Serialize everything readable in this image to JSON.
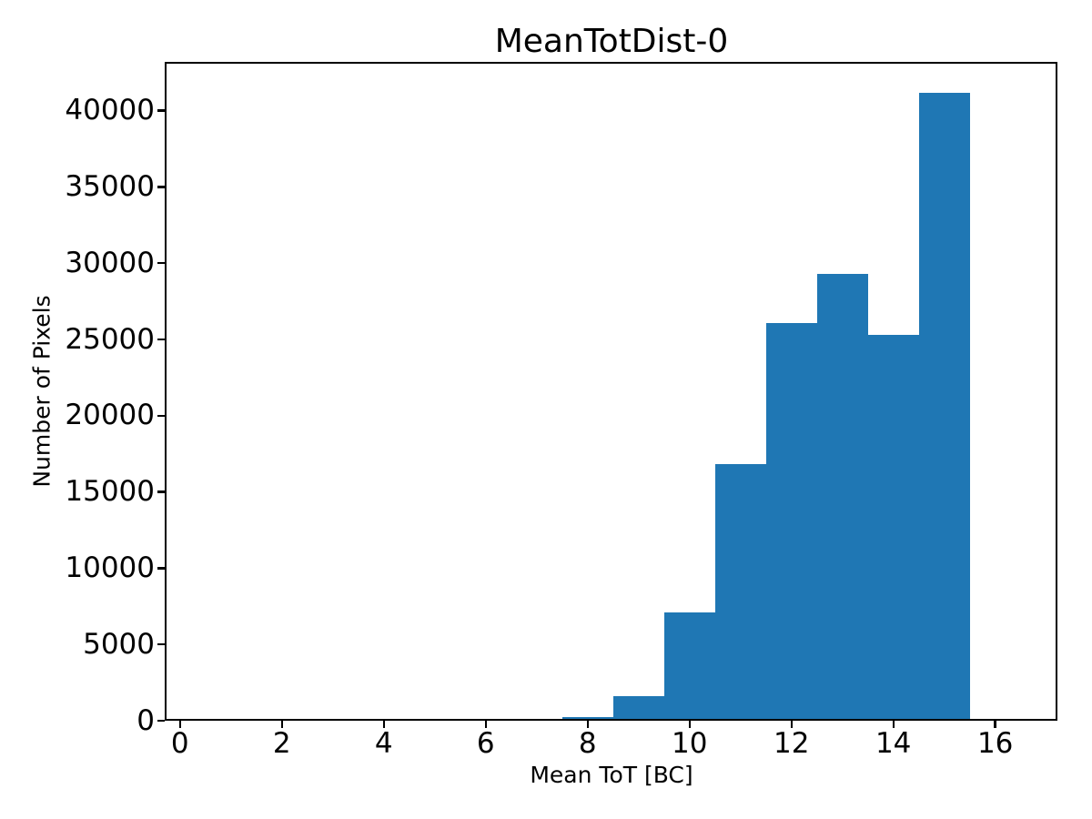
{
  "figure": {
    "background": "#ffffff",
    "text_color": "#000000"
  },
  "chart_data": {
    "type": "bar",
    "subtype": "histogram",
    "title": "MeanTotDist-0",
    "xlabel": "Mean ToT [BC]",
    "ylabel": "Number of Pixels",
    "bar_color": "#1f77b4",
    "bin_edges": [
      7.5,
      8.5,
      9.5,
      10.5,
      11.5,
      12.5,
      13.5,
      14.5,
      15.5
    ],
    "values": [
      250,
      1600,
      7100,
      16800,
      26100,
      29300,
      25300,
      41200
    ],
    "x_ticks": [
      0,
      2,
      4,
      6,
      8,
      10,
      12,
      14,
      16
    ],
    "y_ticks": [
      0,
      5000,
      10000,
      15000,
      20000,
      25000,
      30000,
      35000,
      40000
    ],
    "xlim": [
      -0.3,
      17.22
    ],
    "ylim": [
      0,
      43200
    ],
    "grid": false,
    "legend": null
  }
}
